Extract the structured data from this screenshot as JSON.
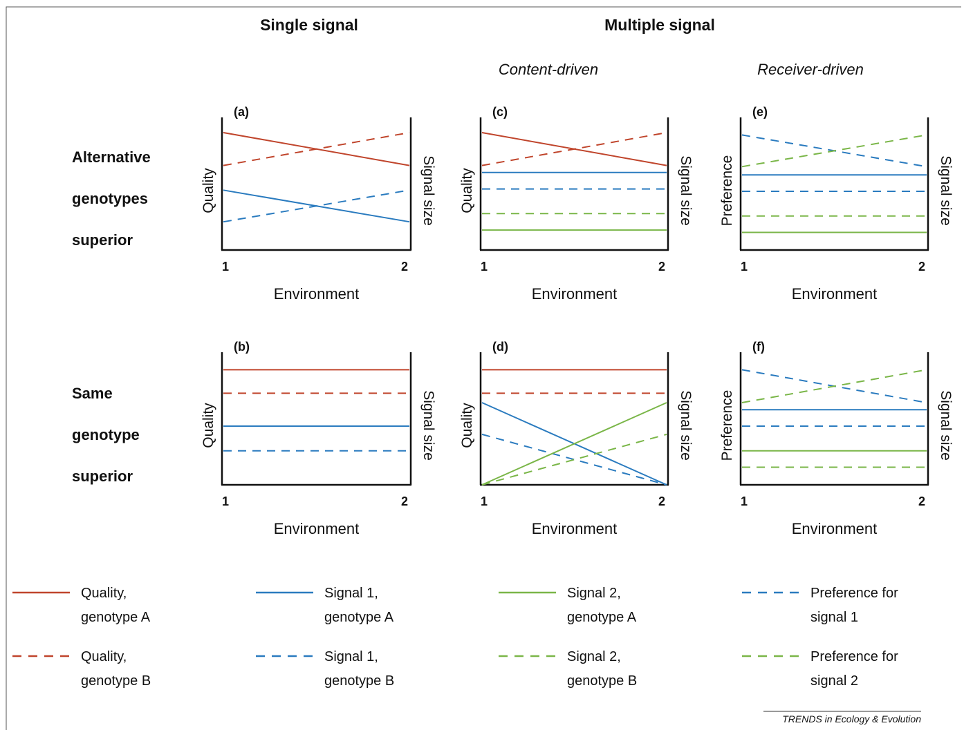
{
  "headers": {
    "single": "Single signal",
    "multiple": "Multiple signal",
    "content_driven": "Content-driven",
    "receiver_driven": "Receiver-driven"
  },
  "row_labels": {
    "top": [
      "Alternative",
      "genotypes",
      "superior"
    ],
    "bottom": [
      "Same",
      "genotype",
      "superior"
    ]
  },
  "axis": {
    "x_label": "Environment",
    "x_ticks": [
      "1",
      "2"
    ],
    "quality": "Quality",
    "preference": "Preference",
    "signal_size": "Signal size"
  },
  "colors": {
    "red": "#c0452c",
    "blue": "#2a7bbf",
    "green": "#7ab648",
    "axis": "#111111"
  },
  "chart_data": [
    {
      "type": "line",
      "panel": "(a)",
      "x": [
        1,
        2
      ],
      "left_axis": "Quality",
      "right_axis": "Signal size",
      "series": [
        {
          "color": "red",
          "dashed": false,
          "values": [
            1.0,
            0.72
          ]
        },
        {
          "color": "red",
          "dashed": true,
          "values": [
            0.72,
            1.0
          ]
        },
        {
          "color": "blue",
          "dashed": false,
          "values": [
            0.51,
            0.24
          ]
        },
        {
          "color": "blue",
          "dashed": true,
          "values": [
            0.24,
            0.51
          ]
        }
      ]
    },
    {
      "type": "line",
      "panel": "(b)",
      "x": [
        1,
        2
      ],
      "left_axis": "Quality",
      "right_axis": "Signal size",
      "series": [
        {
          "color": "red",
          "dashed": false,
          "values": [
            0.98,
            0.98
          ]
        },
        {
          "color": "red",
          "dashed": true,
          "values": [
            0.78,
            0.78
          ]
        },
        {
          "color": "blue",
          "dashed": false,
          "values": [
            0.5,
            0.5
          ]
        },
        {
          "color": "blue",
          "dashed": true,
          "values": [
            0.29,
            0.29
          ]
        }
      ]
    },
    {
      "type": "line",
      "panel": "(c)",
      "x": [
        1,
        2
      ],
      "left_axis": "Quality",
      "right_axis": "Signal size",
      "series": [
        {
          "color": "red",
          "dashed": false,
          "values": [
            1.0,
            0.72
          ]
        },
        {
          "color": "red",
          "dashed": true,
          "values": [
            0.72,
            1.0
          ]
        },
        {
          "color": "blue",
          "dashed": false,
          "values": [
            0.66,
            0.66
          ]
        },
        {
          "color": "blue",
          "dashed": true,
          "values": [
            0.52,
            0.52
          ]
        },
        {
          "color": "green",
          "dashed": true,
          "values": [
            0.31,
            0.31
          ]
        },
        {
          "color": "green",
          "dashed": false,
          "values": [
            0.17,
            0.17
          ]
        }
      ]
    },
    {
      "type": "line",
      "panel": "(d)",
      "x": [
        1,
        2
      ],
      "left_axis": "Quality",
      "right_axis": "Signal size",
      "series": [
        {
          "color": "red",
          "dashed": false,
          "values": [
            0.98,
            0.98
          ]
        },
        {
          "color": "red",
          "dashed": true,
          "values": [
            0.78,
            0.78
          ]
        },
        {
          "color": "blue",
          "dashed": false,
          "values": [
            0.7,
            0.0
          ]
        },
        {
          "color": "blue",
          "dashed": true,
          "values": [
            0.43,
            0.0
          ]
        },
        {
          "color": "green",
          "dashed": false,
          "values": [
            0.0,
            0.7
          ]
        },
        {
          "color": "green",
          "dashed": true,
          "values": [
            0.0,
            0.43
          ]
        }
      ]
    },
    {
      "type": "line",
      "panel": "(e)",
      "x": [
        1,
        2
      ],
      "left_axis": "Preference",
      "right_axis": "Signal size",
      "series": [
        {
          "color": "blue",
          "dashed": true,
          "values": [
            0.98,
            0.71
          ]
        },
        {
          "color": "green",
          "dashed": true,
          "values": [
            0.71,
            0.98
          ]
        },
        {
          "color": "blue",
          "dashed": false,
          "values": [
            0.64,
            0.64
          ]
        },
        {
          "color": "blue",
          "dashed": true,
          "values": [
            0.5,
            0.5
          ]
        },
        {
          "color": "green",
          "dashed": true,
          "values": [
            0.29,
            0.29
          ]
        },
        {
          "color": "green",
          "dashed": false,
          "values": [
            0.15,
            0.15
          ]
        }
      ]
    },
    {
      "type": "line",
      "panel": "(f)",
      "x": [
        1,
        2
      ],
      "left_axis": "Preference",
      "right_axis": "Signal size",
      "series": [
        {
          "color": "blue",
          "dashed": true,
          "values": [
            0.98,
            0.7
          ]
        },
        {
          "color": "green",
          "dashed": true,
          "values": [
            0.7,
            0.98
          ]
        },
        {
          "color": "blue",
          "dashed": false,
          "values": [
            0.64,
            0.64
          ]
        },
        {
          "color": "blue",
          "dashed": true,
          "values": [
            0.5,
            0.5
          ]
        },
        {
          "color": "green",
          "dashed": false,
          "values": [
            0.29,
            0.29
          ]
        },
        {
          "color": "green",
          "dashed": true,
          "values": [
            0.15,
            0.15
          ]
        }
      ]
    }
  ],
  "legend": [
    {
      "color": "red",
      "dashed": false,
      "line1": "Quality,",
      "line2": "genotype A"
    },
    {
      "color": "blue",
      "dashed": false,
      "line1": "Signal 1,",
      "line2": "genotype A"
    },
    {
      "color": "green",
      "dashed": false,
      "line1": "Signal 2,",
      "line2": "genotype A"
    },
    {
      "color": "blue",
      "dashed": true,
      "line1": "Preference for",
      "line2": "signal 1"
    },
    {
      "color": "red",
      "dashed": true,
      "line1": "Quality,",
      "line2": "genotype B"
    },
    {
      "color": "blue",
      "dashed": true,
      "line1": "Signal 1,",
      "line2": "genotype B"
    },
    {
      "color": "green",
      "dashed": true,
      "line1": "Signal 2,",
      "line2": "genotype B"
    },
    {
      "color": "green",
      "dashed": true,
      "line1": "Preference for",
      "line2": "signal 2"
    }
  ],
  "credit": "TRENDS in Ecology & Evolution"
}
